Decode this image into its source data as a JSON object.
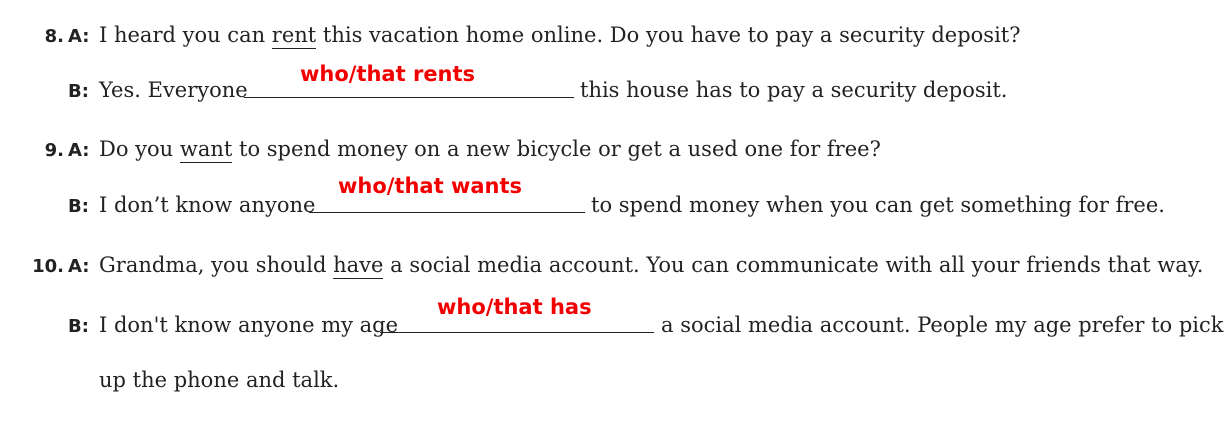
{
  "items": [
    {
      "number": "8.",
      "a_label": "A:",
      "a_pre": "I heard you can ",
      "a_underlined": "rent",
      "a_post": " this vacation home online. Do you have to pay a security deposit?",
      "b_label": "B:",
      "b_pre": "Yes. Everyone",
      "b_post": "this house has to pay a security deposit.",
      "answer": "who/that rents"
    },
    {
      "number": "9.",
      "a_label": "A:",
      "a_pre": "Do you ",
      "a_underlined": "want",
      "a_post": " to spend money on a new bicycle or get a used one for free?",
      "b_label": "B:",
      "b_pre": "I don’t know anyone",
      "b_post": "to spend money when you can get something for free.",
      "answer": "who/that wants"
    },
    {
      "number": "10.",
      "a_label": "A:",
      "a_pre": "Grandma, you should ",
      "a_underlined": "have",
      "a_post": " a social media account. You can communicate with all your friends that way.",
      "b_label": "B:",
      "b_pre": "I don't know anyone my age",
      "b_post": "a social media account. People my age prefer to pick",
      "b_cont": "up the phone and talk.",
      "answer": "who/that has"
    }
  ]
}
